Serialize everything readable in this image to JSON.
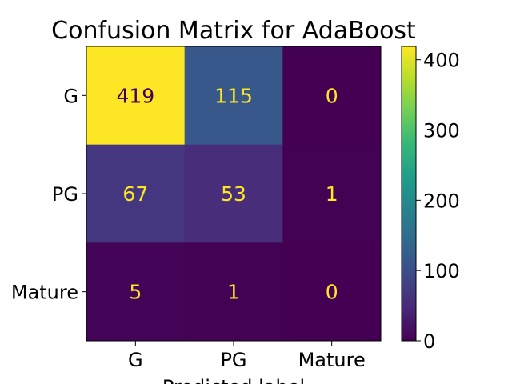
{
  "chart_data": {
    "type": "heatmap",
    "title": "Confusion Matrix for AdaBoost",
    "xlabel": "Predicted label",
    "ylabel": "",
    "x_categories": [
      "G",
      "PG",
      "Mature"
    ],
    "y_categories": [
      "G",
      "PG",
      "Mature"
    ],
    "values": [
      [
        419,
        115,
        0
      ],
      [
        67,
        53,
        1
      ],
      [
        5,
        1,
        0
      ]
    ],
    "colorbar": {
      "colormap": "viridis",
      "range": [
        0,
        419
      ],
      "ticks": [
        0,
        100,
        200,
        300,
        400
      ]
    },
    "colors": {
      "text_on_dark": "#fde725",
      "text_on_light": "#440154"
    }
  }
}
